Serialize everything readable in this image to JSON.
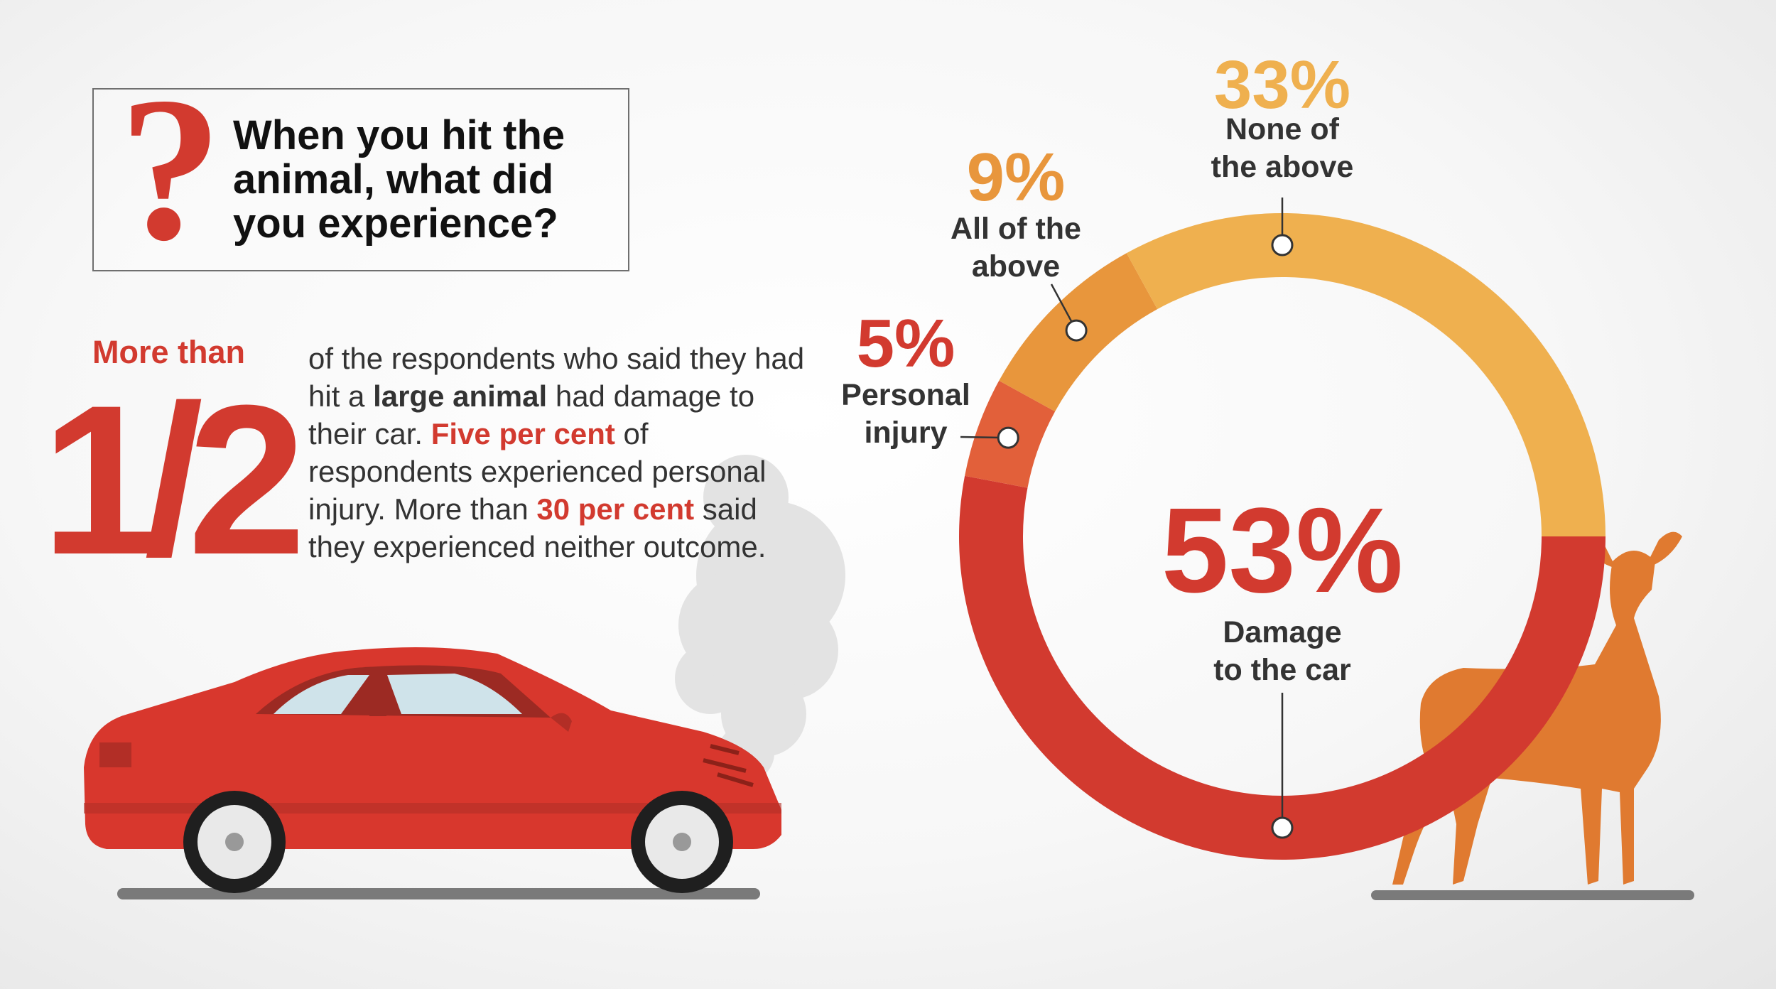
{
  "question": {
    "mark": "?",
    "line1": "When you hit the",
    "line2": "animal, what did",
    "line3": "you experience?"
  },
  "headline": {
    "more_than": "More than",
    "fraction": "1/2"
  },
  "description": {
    "p1": "of the respondents who said they had hit a ",
    "b1": "large animal",
    "p2": " had damage to their car. ",
    "r1": "Five per cent",
    "p3": " of respondents experienced personal injury. More than ",
    "r2": "30 per cent",
    "p4": " said they experienced neither outcome."
  },
  "chart_data": {
    "type": "pie",
    "categories": [
      "Damage to the car",
      "Personal injury",
      "All of the above",
      "None of the above"
    ],
    "values": [
      53,
      5,
      9,
      33
    ],
    "value_labels": [
      "53%",
      "5%",
      "9%",
      "33%"
    ],
    "label_lines": [
      [
        "Damage",
        "to the car"
      ],
      [
        "Personal",
        "injury"
      ],
      [
        "All of the",
        "above"
      ],
      [
        "None of",
        "the above"
      ]
    ],
    "colors": [
      "#d23a2f",
      "#e2603a",
      "#e8963c",
      "#efb04f"
    ],
    "pct_colors": [
      "#d23a2f",
      "#d23a2f",
      "#e8963c",
      "#efb04f"
    ],
    "donut": true
  },
  "colors": {
    "accent_red": "#d23a2f",
    "text_dark": "#333333",
    "car_red": "#d8372d",
    "deer": "#e07a30",
    "smoke": "#e3e3e3"
  }
}
